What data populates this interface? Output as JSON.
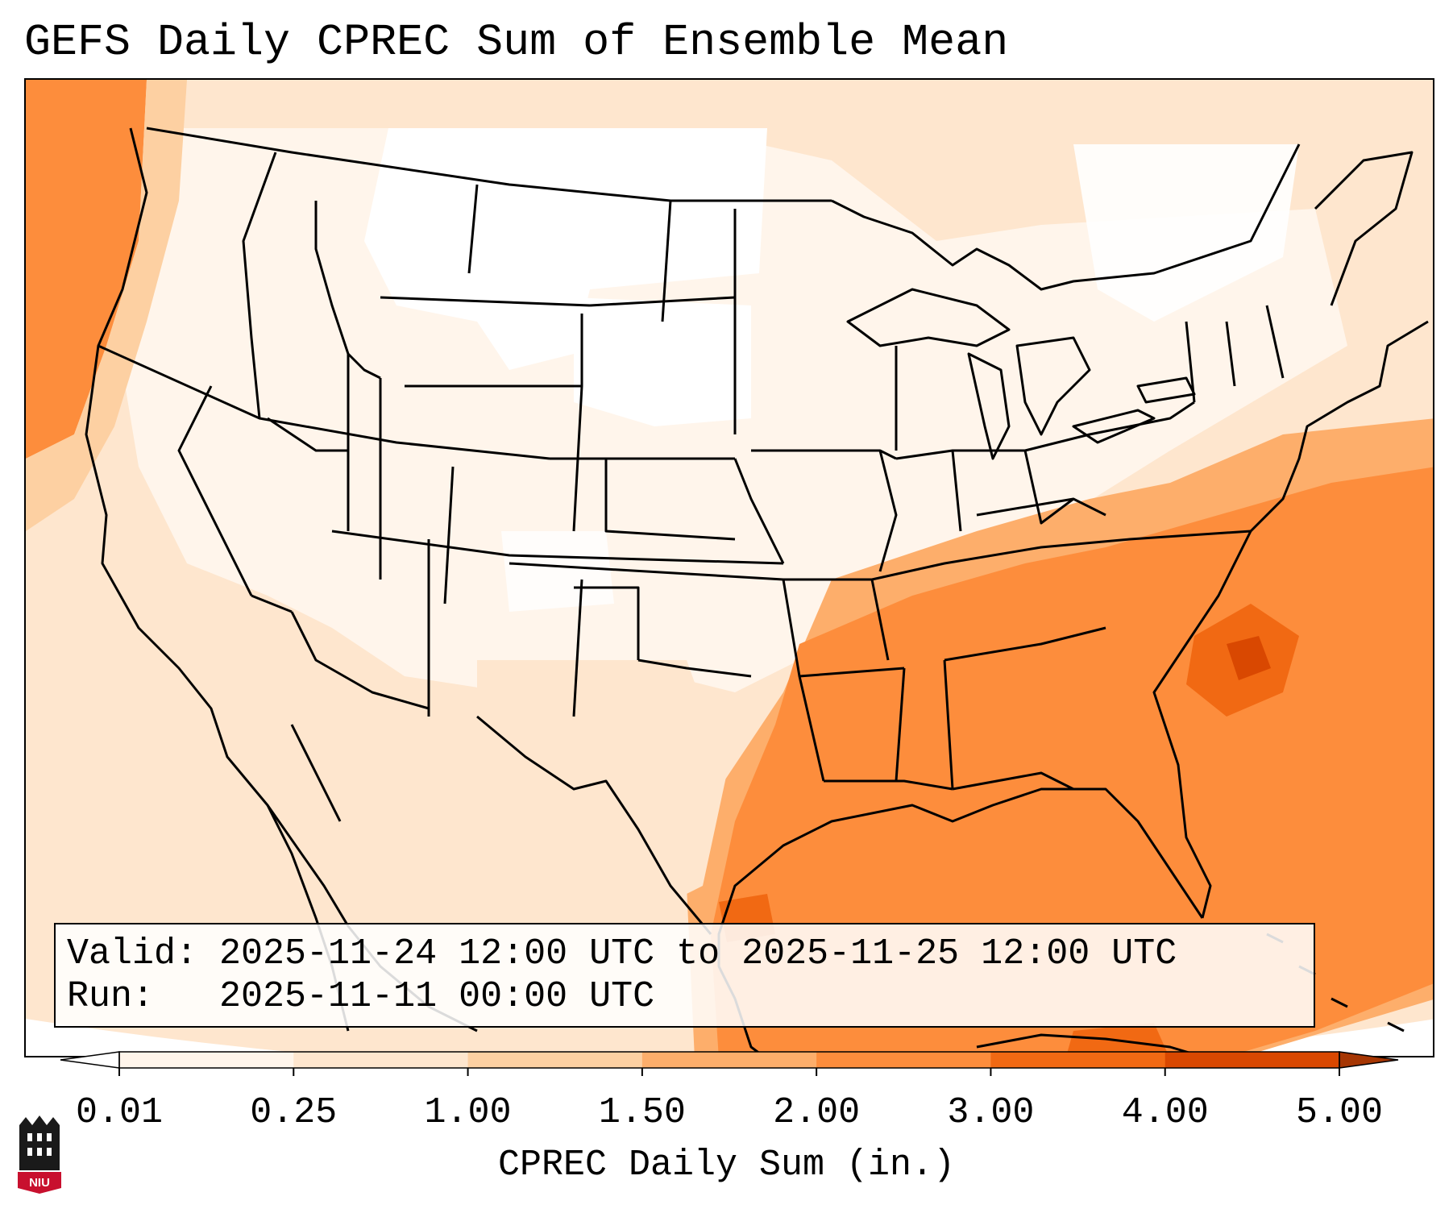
{
  "title": "GEFS Daily CPREC Sum of Ensemble Mean",
  "info": {
    "valid_line": "Valid: 2025-11-24 12:00 UTC to 2025-11-25 12:00 UTC",
    "run_line": "Run:   2025-11-11 00:00 UTC"
  },
  "colorbar": {
    "label": "CPREC Daily Sum (in.)",
    "ticks": [
      "0.01",
      "0.25",
      "1.00",
      "1.50",
      "2.00",
      "3.00",
      "4.00",
      "5.00"
    ],
    "colors": [
      "#fff5eb",
      "#fee6ce",
      "#fdd0a2",
      "#fdae6b",
      "#fd8d3c",
      "#f16913",
      "#d94801"
    ],
    "under_color": "#ffffff",
    "over_color": "#a63603"
  },
  "logo": {
    "text": "NIU",
    "colors": {
      "red": "#c8102e",
      "black": "#1a1a1a"
    }
  }
}
